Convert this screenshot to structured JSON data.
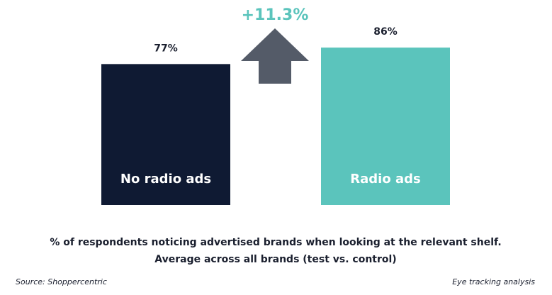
{
  "chart_data": {
    "type": "bar",
    "categories": [
      "No radio ads",
      "Radio ads"
    ],
    "values": [
      77,
      86
    ],
    "value_labels": [
      "77%",
      "86%"
    ],
    "colors": [
      "#0f1a33",
      "#5bc4bc"
    ],
    "annotation": "+11.3%",
    "annotation_color": "#5bc4bc",
    "caption": [
      "% of respondents noticing advertised brands when looking at the relevant shelf.",
      "Average across all brands (test vs. control)"
    ],
    "source": "Source: Shoppercentric",
    "note": "Eye tracking analysis"
  }
}
